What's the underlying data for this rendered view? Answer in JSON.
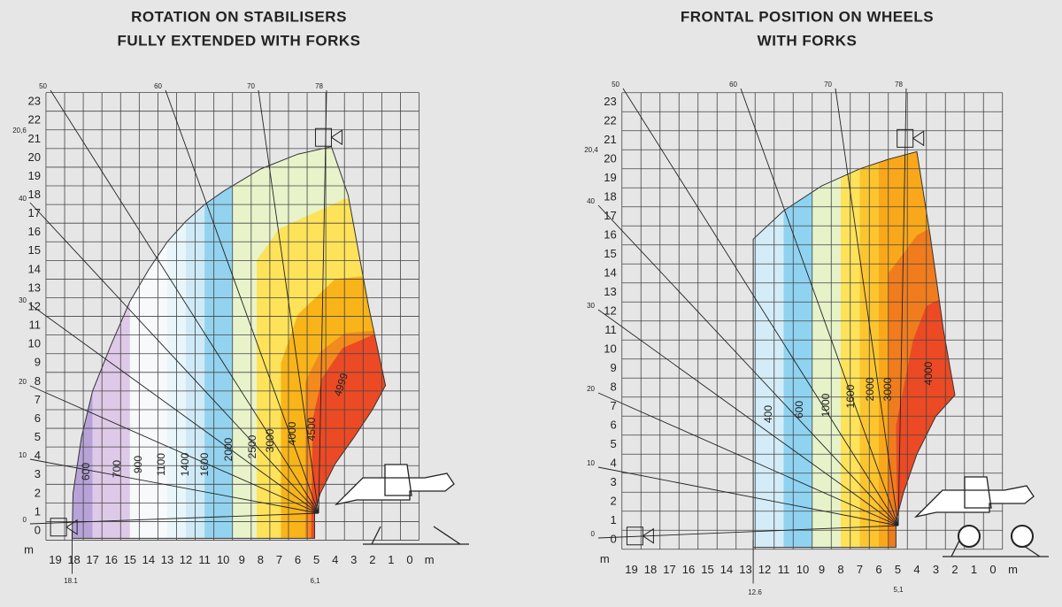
{
  "panels": [
    {
      "title": [
        "ROTATION ON STABILISERS",
        "FULLY EXTENDED WITH FORKS"
      ],
      "y_labels": [
        "0",
        "1",
        "2",
        "3",
        "4",
        "5",
        "6",
        "7",
        "8",
        "9",
        "10",
        "11",
        "12",
        "13",
        "14",
        "15",
        "16",
        "17",
        "18",
        "19",
        "20",
        "21",
        "22",
        "23"
      ],
      "y_unit": "m",
      "x_labels": [
        "19",
        "18",
        "17",
        "16",
        "15",
        "14",
        "13",
        "12",
        "11",
        "10",
        "9",
        "8",
        "7",
        "6",
        "5",
        "4",
        "3",
        "2",
        "1",
        "0"
      ],
      "x_unit": "m",
      "angles": [
        "0",
        "10",
        "20",
        "30",
        "40",
        "50",
        "60",
        "70",
        "78"
      ],
      "zones": [
        "600",
        "700",
        "900",
        "1100",
        "1400",
        "1600",
        "2000",
        "2500",
        "3000",
        "4000",
        "4500",
        "4999"
      ],
      "marks": {
        "max_height": "20,6",
        "max_reach": "18.1",
        "min_reach": "6,1"
      }
    },
    {
      "title": [
        "FRONTAL POSITION ON WHEELS",
        "WITH FORKS"
      ],
      "y_labels": [
        "0",
        "1",
        "2",
        "3",
        "4",
        "5",
        "6",
        "7",
        "8",
        "9",
        "10",
        "11",
        "12",
        "13",
        "14",
        "15",
        "16",
        "17",
        "18",
        "19",
        "20",
        "21",
        "22",
        "23"
      ],
      "y_unit": "m",
      "x_labels": [
        "19",
        "18",
        "17",
        "16",
        "15",
        "14",
        "13",
        "12",
        "11",
        "10",
        "9",
        "8",
        "7",
        "6",
        "5",
        "4",
        "3",
        "2",
        "1",
        "0"
      ],
      "x_unit": "m",
      "angles": [
        "0",
        "10",
        "20",
        "30",
        "40",
        "50",
        "60",
        "70",
        "78"
      ],
      "zones": [
        "400",
        "600",
        "1000",
        "1600",
        "2000",
        "3000",
        "4000"
      ],
      "marks": {
        "max_height": "20,4",
        "max_reach": "12.6",
        "min_reach": "5,1"
      }
    }
  ]
}
